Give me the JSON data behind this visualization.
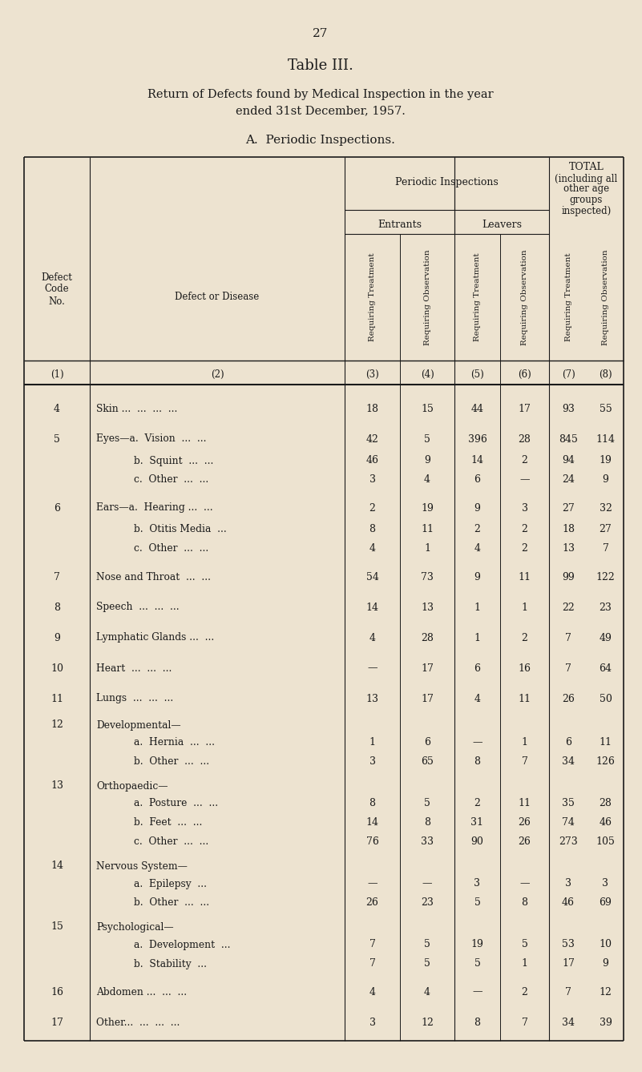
{
  "page_number": "27",
  "title_line1": "TABLE III.",
  "title_line2": "Return of Defects found by Medical Inspection in the year",
  "title_line3": "ended 31st December, 1957.",
  "subtitle": "A.  Periodic Inspections.",
  "bg_color": "#ede3d0",
  "text_color": "#1a1a1a",
  "rows": [
    {
      "code": "4",
      "label": "Skin ...  ...  ...  ...",
      "c3": "18",
      "c4": "15",
      "c5": "44",
      "c6": "17",
      "c7": "93",
      "c8": "55",
      "group_start": true
    },
    {
      "code": "5",
      "label": "Eyes—a.  Vision  ...  ...",
      "c3": "42",
      "c4": "5",
      "c5": "396",
      "c6": "28",
      "c7": "845",
      "c8": "114",
      "group_start": true
    },
    {
      "code": "",
      "label": "b.  Squint  ...  ...",
      "c3": "46",
      "c4": "9",
      "c5": "14",
      "c6": "2",
      "c7": "94",
      "c8": "19",
      "group_start": false
    },
    {
      "code": "",
      "label": "c.  Other  ...  ...",
      "c3": "3",
      "c4": "4",
      "c5": "6",
      "c6": "—",
      "c7": "24",
      "c8": "9",
      "group_start": false
    },
    {
      "code": "6",
      "label": "Ears—a.  Hearing ...  ...",
      "c3": "2",
      "c4": "19",
      "c5": "9",
      "c6": "3",
      "c7": "27",
      "c8": "32",
      "group_start": true
    },
    {
      "code": "",
      "label": "b.  Otitis Media  ...",
      "c3": "8",
      "c4": "11",
      "c5": "2",
      "c6": "2",
      "c7": "18",
      "c8": "27",
      "group_start": false
    },
    {
      "code": "",
      "label": "c.  Other  ...  ...",
      "c3": "4",
      "c4": "1",
      "c5": "4",
      "c6": "2",
      "c7": "13",
      "c8": "7",
      "group_start": false
    },
    {
      "code": "7",
      "label": "Nose and Throat  ...  ...",
      "c3": "54",
      "c4": "73",
      "c5": "9",
      "c6": "11",
      "c7": "99",
      "c8": "122",
      "group_start": true
    },
    {
      "code": "8",
      "label": "Speech  ...  ...  ...",
      "c3": "14",
      "c4": "13",
      "c5": "1",
      "c6": "1",
      "c7": "22",
      "c8": "23",
      "group_start": true
    },
    {
      "code": "9",
      "label": "Lymphatic Glands ...  ...",
      "c3": "4",
      "c4": "28",
      "c5": "1",
      "c6": "2",
      "c7": "7",
      "c8": "49",
      "group_start": true
    },
    {
      "code": "10",
      "label": "Heart  ...  ...  ...",
      "c3": "—",
      "c4": "17",
      "c5": "6",
      "c6": "16",
      "c7": "7",
      "c8": "64",
      "group_start": true
    },
    {
      "code": "11",
      "label": "Lungs  ...  ...  ...",
      "c3": "13",
      "c4": "17",
      "c5": "4",
      "c6": "11",
      "c7": "26",
      "c8": "50",
      "group_start": true
    },
    {
      "code": "12",
      "label": "Developmental—",
      "c3": "",
      "c4": "",
      "c5": "",
      "c6": "",
      "c7": "",
      "c8": "",
      "group_start": true,
      "header_only": true
    },
    {
      "code": "",
      "label": "a.  Hernia  ...  ...",
      "c3": "1",
      "c4": "6",
      "c5": "—",
      "c6": "1",
      "c7": "6",
      "c8": "11",
      "group_start": false
    },
    {
      "code": "",
      "label": "b.  Other  ...  ...",
      "c3": "3",
      "c4": "65",
      "c5": "8",
      "c6": "7",
      "c7": "34",
      "c8": "126",
      "group_start": false
    },
    {
      "code": "13",
      "label": "Orthopaedic—",
      "c3": "",
      "c4": "",
      "c5": "",
      "c6": "",
      "c7": "",
      "c8": "",
      "group_start": true,
      "header_only": true
    },
    {
      "code": "",
      "label": "a.  Posture  ...  ...",
      "c3": "8",
      "c4": "5",
      "c5": "2",
      "c6": "11",
      "c7": "35",
      "c8": "28",
      "group_start": false
    },
    {
      "code": "",
      "label": "b.  Feet  ...  ...",
      "c3": "14",
      "c4": "8",
      "c5": "31",
      "c6": "26",
      "c7": "74",
      "c8": "46",
      "group_start": false
    },
    {
      "code": "",
      "label": "c.  Other  ...  ...",
      "c3": "76",
      "c4": "33",
      "c5": "90",
      "c6": "26",
      "c7": "273",
      "c8": "105",
      "group_start": false
    },
    {
      "code": "14",
      "label": "Nervous System—",
      "c3": "",
      "c4": "",
      "c5": "",
      "c6": "",
      "c7": "",
      "c8": "",
      "group_start": true,
      "header_only": true
    },
    {
      "code": "",
      "label": "a.  Epilepsy  ...",
      "c3": "—",
      "c4": "—",
      "c5": "3",
      "c6": "—",
      "c7": "3",
      "c8": "3",
      "group_start": false
    },
    {
      "code": "",
      "label": "b.  Other  ...  ...",
      "c3": "26",
      "c4": "23",
      "c5": "5",
      "c6": "8",
      "c7": "46",
      "c8": "69",
      "group_start": false
    },
    {
      "code": "15",
      "label": "Psychological—",
      "c3": "",
      "c4": "",
      "c5": "",
      "c6": "",
      "c7": "",
      "c8": "",
      "group_start": true,
      "header_only": true
    },
    {
      "code": "",
      "label": "a.  Development  ...",
      "c3": "7",
      "c4": "5",
      "c5": "19",
      "c6": "5",
      "c7": "53",
      "c8": "10",
      "group_start": false
    },
    {
      "code": "",
      "label": "b.  Stability  ...",
      "c3": "7",
      "c4": "5",
      "c5": "5",
      "c6": "1",
      "c7": "17",
      "c8": "9",
      "group_start": false
    },
    {
      "code": "16",
      "label": "Abdomen ...  ...  ...",
      "c3": "4",
      "c4": "4",
      "c5": "—",
      "c6": "2",
      "c7": "7",
      "c8": "12",
      "group_start": true
    },
    {
      "code": "17",
      "label": "Other...  ...  ...  ...",
      "c3": "3",
      "c4": "12",
      "c5": "8",
      "c6": "7",
      "c7": "34",
      "c8": "39",
      "group_start": true
    }
  ]
}
